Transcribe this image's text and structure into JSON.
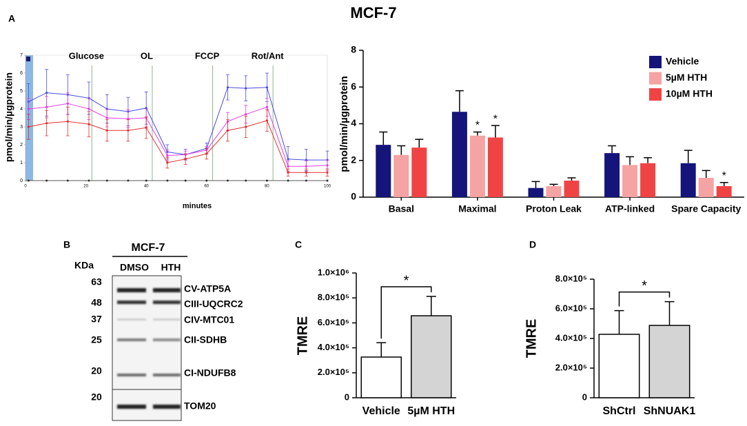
{
  "title": "MCF-7",
  "panel_letters": [
    "A",
    "B",
    "C",
    "D"
  ],
  "chart_data": [
    {
      "type": "line",
      "ylabel": "pmol/min/µgprotein",
      "xlabel": "minutes",
      "x": [
        1,
        7,
        14,
        21,
        27,
        34,
        40,
        47,
        53,
        60,
        67,
        73,
        80,
        87,
        93,
        100
      ],
      "xlim": [
        0,
        100
      ],
      "xticks": [
        0,
        20,
        40,
        60,
        80,
        100
      ],
      "ylim": [
        0,
        7
      ],
      "yticks": [
        0,
        1,
        2,
        3,
        4,
        5,
        6,
        7
      ],
      "annotations": [
        {
          "text": "Glucose",
          "x": 22
        },
        {
          "text": "OL",
          "x": 42
        },
        {
          "text": "FCCP",
          "x": 62
        },
        {
          "text": "Rot/Ant",
          "x": 82
        }
      ],
      "series": [
        {
          "color": "#4a4ae0",
          "values": [
            4.4,
            4.9,
            4.8,
            4.6,
            4.0,
            3.85,
            4.05,
            1.6,
            1.45,
            1.8,
            5.2,
            5.15,
            5.2,
            1.2,
            1.15,
            1.15
          ],
          "errors": [
            1.0,
            1.3,
            1.1,
            0.9,
            0.8,
            0.8,
            0.9,
            0.4,
            0.3,
            0.3,
            0.7,
            0.7,
            0.8,
            0.7,
            0.6,
            0.5
          ]
        },
        {
          "color": "#e040e0",
          "values": [
            4.0,
            4.1,
            4.3,
            4.0,
            3.5,
            3.45,
            3.5,
            1.4,
            1.45,
            1.7,
            3.3,
            3.7,
            4.1,
            0.8,
            0.8,
            0.85
          ],
          "errors": [
            0.6,
            0.6,
            0.6,
            0.6,
            0.5,
            0.5,
            0.5,
            0.3,
            0.2,
            0.2,
            0.5,
            0.5,
            0.5,
            0.3,
            0.3,
            0.3
          ]
        },
        {
          "color": "#e03030",
          "values": [
            3.0,
            3.2,
            3.3,
            3.15,
            2.8,
            2.8,
            2.95,
            1.0,
            1.2,
            1.5,
            2.8,
            3.0,
            3.35,
            0.45,
            0.45,
            0.45
          ],
          "errors": [
            0.7,
            0.7,
            0.8,
            0.7,
            0.6,
            0.6,
            0.6,
            0.3,
            0.3,
            0.3,
            0.6,
            0.6,
            0.6,
            0.2,
            0.2,
            0.2
          ]
        }
      ]
    },
    {
      "type": "bar",
      "ylabel": "pmol/min/µgprotein",
      "categories": [
        "Basal",
        "Maximal",
        "Proton Leak",
        "ATP-linked",
        "Spare Capacity"
      ],
      "ylim": [
        0,
        8
      ],
      "yticks": [
        0,
        2,
        4,
        6,
        8
      ],
      "legend": "top-right",
      "series": [
        {
          "name": "Vehicle",
          "color": "#14147a",
          "values": [
            2.85,
            4.65,
            0.5,
            2.4,
            1.85
          ],
          "errors": [
            0.7,
            1.15,
            0.35,
            0.4,
            0.7
          ]
        },
        {
          "name": "5µM HTH",
          "color": "#f5a3a3",
          "values": [
            2.3,
            3.35,
            0.6,
            1.75,
            1.05
          ],
          "errors": [
            0.5,
            0.2,
            0.1,
            0.45,
            0.4
          ]
        },
        {
          "name": "10µM HTH",
          "color": "#f04444",
          "values": [
            2.7,
            3.25,
            0.9,
            1.85,
            0.6
          ],
          "errors": [
            0.45,
            0.65,
            0.15,
            0.3,
            0.2
          ]
        }
      ],
      "annotations": [
        {
          "text": "*",
          "category": 1,
          "series": 1
        },
        {
          "text": "*",
          "category": 1,
          "series": 2
        },
        {
          "text": "*",
          "category": 4,
          "series": 2
        }
      ]
    },
    {
      "type": "bar",
      "ylabel": "TMRE",
      "categories": [
        "Vehicle",
        "5µM  HTH"
      ],
      "values": [
        326000,
        657000
      ],
      "errors": [
        115000,
        155000
      ],
      "colors": [
        "#ffffff",
        "#d4d4d4"
      ],
      "ylim": [
        0,
        1000000
      ],
      "yticks": [
        0,
        {
          "value": 200000,
          "label": "2.0×10⁵"
        },
        {
          "value": 400000,
          "label": "4.0×10⁵"
        },
        {
          "value": 600000,
          "label": "6.0×10⁵"
        },
        {
          "value": 800000,
          "label": "8.0×10⁵"
        },
        {
          "value": 1000000,
          "label": "1.0×10⁶"
        }
      ],
      "significance": "*"
    },
    {
      "type": "bar",
      "ylabel": "TMRE",
      "categories": [
        "ShCtrl",
        "ShNUAK1"
      ],
      "values": [
        428000,
        488000
      ],
      "errors": [
        160000,
        160000
      ],
      "colors": [
        "#ffffff",
        "#d4d4d4"
      ],
      "ylim": [
        0,
        800000
      ],
      "yticks": [
        0,
        {
          "value": 200000,
          "label": "2.0×10⁵"
        },
        {
          "value": 400000,
          "label": "4.0×10⁵"
        },
        {
          "value": 600000,
          "label": "6.0×10⁵"
        },
        {
          "value": 800000,
          "label": "8.0×10⁵"
        }
      ],
      "significance": "*"
    }
  ],
  "blot": {
    "title": "MCF-7",
    "lanes": [
      "DMSO",
      "HTH"
    ],
    "unit": "KDa",
    "markers": [
      "63",
      "48",
      "37",
      "25",
      "20",
      "20"
    ],
    "proteins": [
      "CV-ATP5A",
      "CIII-UQCRC2",
      "CIV-MTC01",
      "CII-SDHB",
      "CI-NDUFB8",
      "TOM20"
    ]
  }
}
